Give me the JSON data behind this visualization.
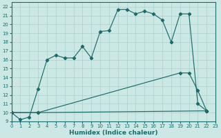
{
  "xlabel": "Humidex (Indice chaleur)",
  "bg_color": "#cce8e4",
  "line_color": "#1a6b6b",
  "grid_color": "#aad0cc",
  "xlim": [
    0,
    23
  ],
  "ylim": [
    9,
    22.5
  ],
  "xticks": [
    0,
    1,
    2,
    3,
    4,
    5,
    6,
    7,
    8,
    9,
    10,
    11,
    12,
    13,
    14,
    15,
    16,
    17,
    18,
    19,
    20,
    21,
    22,
    23
  ],
  "yticks": [
    9,
    10,
    11,
    12,
    13,
    14,
    15,
    16,
    17,
    18,
    19,
    20,
    21,
    22
  ],
  "curve1_x": [
    0,
    1,
    2,
    3,
    4,
    5,
    6,
    7,
    8,
    9,
    10,
    11,
    12,
    13,
    14,
    15,
    16,
    17,
    18,
    19,
    20,
    21,
    22
  ],
  "curve1_y": [
    10,
    9.2,
    9.5,
    12.7,
    16.0,
    16.5,
    16.2,
    16.2,
    17.5,
    16.2,
    19.2,
    19.3,
    21.7,
    21.7,
    21.2,
    21.5,
    21.2,
    20.5,
    18.0,
    21.2,
    21.2,
    11.0,
    10.2
  ],
  "curve2_x": [
    0,
    3,
    22
  ],
  "curve2_y": [
    10,
    10,
    10.2
  ],
  "curve3_x": [
    0,
    3,
    19,
    20,
    21,
    22
  ],
  "curve3_y": [
    10,
    10,
    14.5,
    14.5,
    12.5,
    10.2
  ]
}
